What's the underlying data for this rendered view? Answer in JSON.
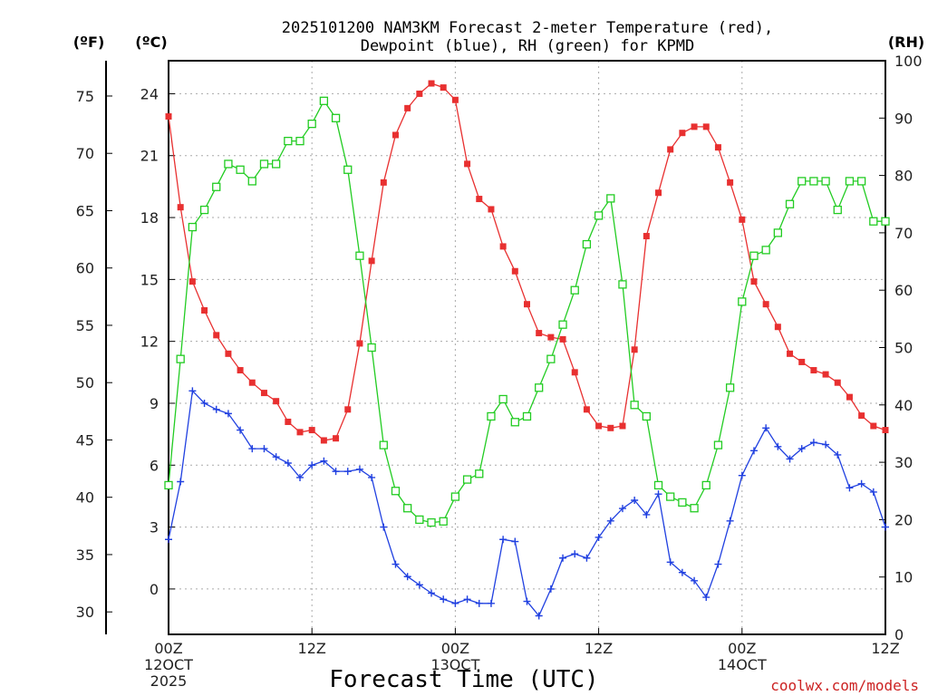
{
  "chart_data": {
    "type": "line",
    "title_line1": "2025101200 NAM3KM Forecast 2-meter Temperature (red),",
    "title_line2": "Dewpoint (blue), RH (green) for KPMD",
    "xlabel": "Forecast Time (UTC)",
    "credit": "coolwx.com/models",
    "units": {
      "fahrenheit": "(ºF)",
      "celsius": "(ºC)",
      "rh": "(RH)"
    },
    "x_range_hours": [
      0,
      60
    ],
    "x_ticks": [
      {
        "hour": 0,
        "label": "00Z",
        "sub1": "12OCT",
        "sub2": "2025"
      },
      {
        "hour": 12,
        "label": "12Z",
        "sub1": "",
        "sub2": ""
      },
      {
        "hour": 24,
        "label": "00Z",
        "sub1": "13OCT",
        "sub2": ""
      },
      {
        "hour": 36,
        "label": "12Z",
        "sub1": "",
        "sub2": ""
      },
      {
        "hour": 48,
        "label": "00Z",
        "sub1": "14OCT",
        "sub2": ""
      },
      {
        "hour": 60,
        "label": "12Z",
        "sub1": "",
        "sub2": ""
      }
    ],
    "ylim_celsius": [
      -2.2,
      25.6
    ],
    "ylim_rh": [
      0,
      100
    ],
    "celsius_ticks": [
      0,
      3,
      6,
      9,
      12,
      15,
      18,
      21,
      24
    ],
    "fahrenheit_ticks": [
      30,
      35,
      40,
      45,
      50,
      55,
      60,
      65,
      70,
      75
    ],
    "rh_ticks": [
      0,
      10,
      20,
      30,
      40,
      50,
      60,
      70,
      80,
      90,
      100
    ],
    "hours": [
      0,
      1,
      2,
      3,
      4,
      5,
      6,
      7,
      8,
      9,
      10,
      11,
      12,
      13,
      14,
      15,
      16,
      17,
      18,
      19,
      20,
      21,
      22,
      23,
      24,
      25,
      26,
      27,
      28,
      29,
      30,
      31,
      32,
      33,
      34,
      35,
      36,
      37,
      38,
      39,
      40,
      41,
      42,
      43,
      44,
      45,
      46,
      47,
      48,
      49,
      50,
      51,
      52,
      53,
      54,
      55,
      56,
      57,
      58,
      59,
      60
    ],
    "series": [
      {
        "name": "Temperature",
        "unit": "C",
        "color": "#e83030",
        "marker": "filled-square",
        "values": [
          22.9,
          18.5,
          14.9,
          13.5,
          12.3,
          11.4,
          10.6,
          10.0,
          9.5,
          9.1,
          8.1,
          7.6,
          7.7,
          7.2,
          7.3,
          8.7,
          11.9,
          15.9,
          19.7,
          22.0,
          23.3,
          24.0,
          24.5,
          24.3,
          23.7,
          20.6,
          18.9,
          18.4,
          16.6,
          15.4,
          13.8,
          12.4,
          12.2,
          12.1,
          10.5,
          8.7,
          7.9,
          7.8,
          7.9,
          11.6,
          17.1,
          19.2,
          21.3,
          22.1,
          22.4,
          22.4,
          21.4,
          19.7,
          17.9,
          14.9,
          13.8,
          12.7,
          11.4,
          11.0,
          10.6,
          10.4,
          10.0,
          9.3,
          8.4,
          7.9,
          7.7
        ]
      },
      {
        "name": "Dewpoint",
        "unit": "C",
        "color": "#2040e0",
        "marker": "plus",
        "values": [
          2.4,
          5.2,
          9.6,
          9.0,
          8.7,
          8.5,
          7.7,
          6.8,
          6.8,
          6.4,
          6.1,
          5.4,
          6.0,
          6.2,
          5.7,
          5.7,
          5.8,
          5.4,
          3.0,
          1.2,
          0.6,
          0.2,
          -0.2,
          -0.5,
          -0.7,
          -0.5,
          -0.7,
          -0.7,
          2.4,
          2.3,
          -0.6,
          -1.3,
          0.0,
          1.5,
          1.7,
          1.5,
          2.5,
          3.3,
          3.9,
          4.3,
          3.6,
          4.6,
          1.3,
          0.8,
          0.4,
          -0.4,
          1.2,
          3.3,
          5.5,
          6.7,
          7.8,
          6.9,
          6.3,
          6.8,
          7.1,
          7.0,
          6.5,
          4.9,
          5.1,
          4.7,
          3.0
        ]
      },
      {
        "name": "RH",
        "unit": "%",
        "color": "#22cc22",
        "marker": "open-square",
        "values": [
          26,
          48,
          71,
          74,
          78,
          82,
          81,
          79,
          82,
          82,
          86,
          86,
          89,
          93,
          90,
          81,
          66,
          50,
          33,
          25,
          22,
          20,
          19.5,
          19.7,
          24,
          27,
          28,
          38,
          41,
          37,
          38,
          43,
          48,
          54,
          60,
          68,
          73,
          76,
          61,
          40,
          38,
          26,
          24,
          23,
          22,
          26,
          33,
          43,
          58,
          66,
          67,
          70,
          75,
          79,
          79,
          79,
          74,
          79,
          79,
          72,
          72
        ]
      }
    ]
  }
}
